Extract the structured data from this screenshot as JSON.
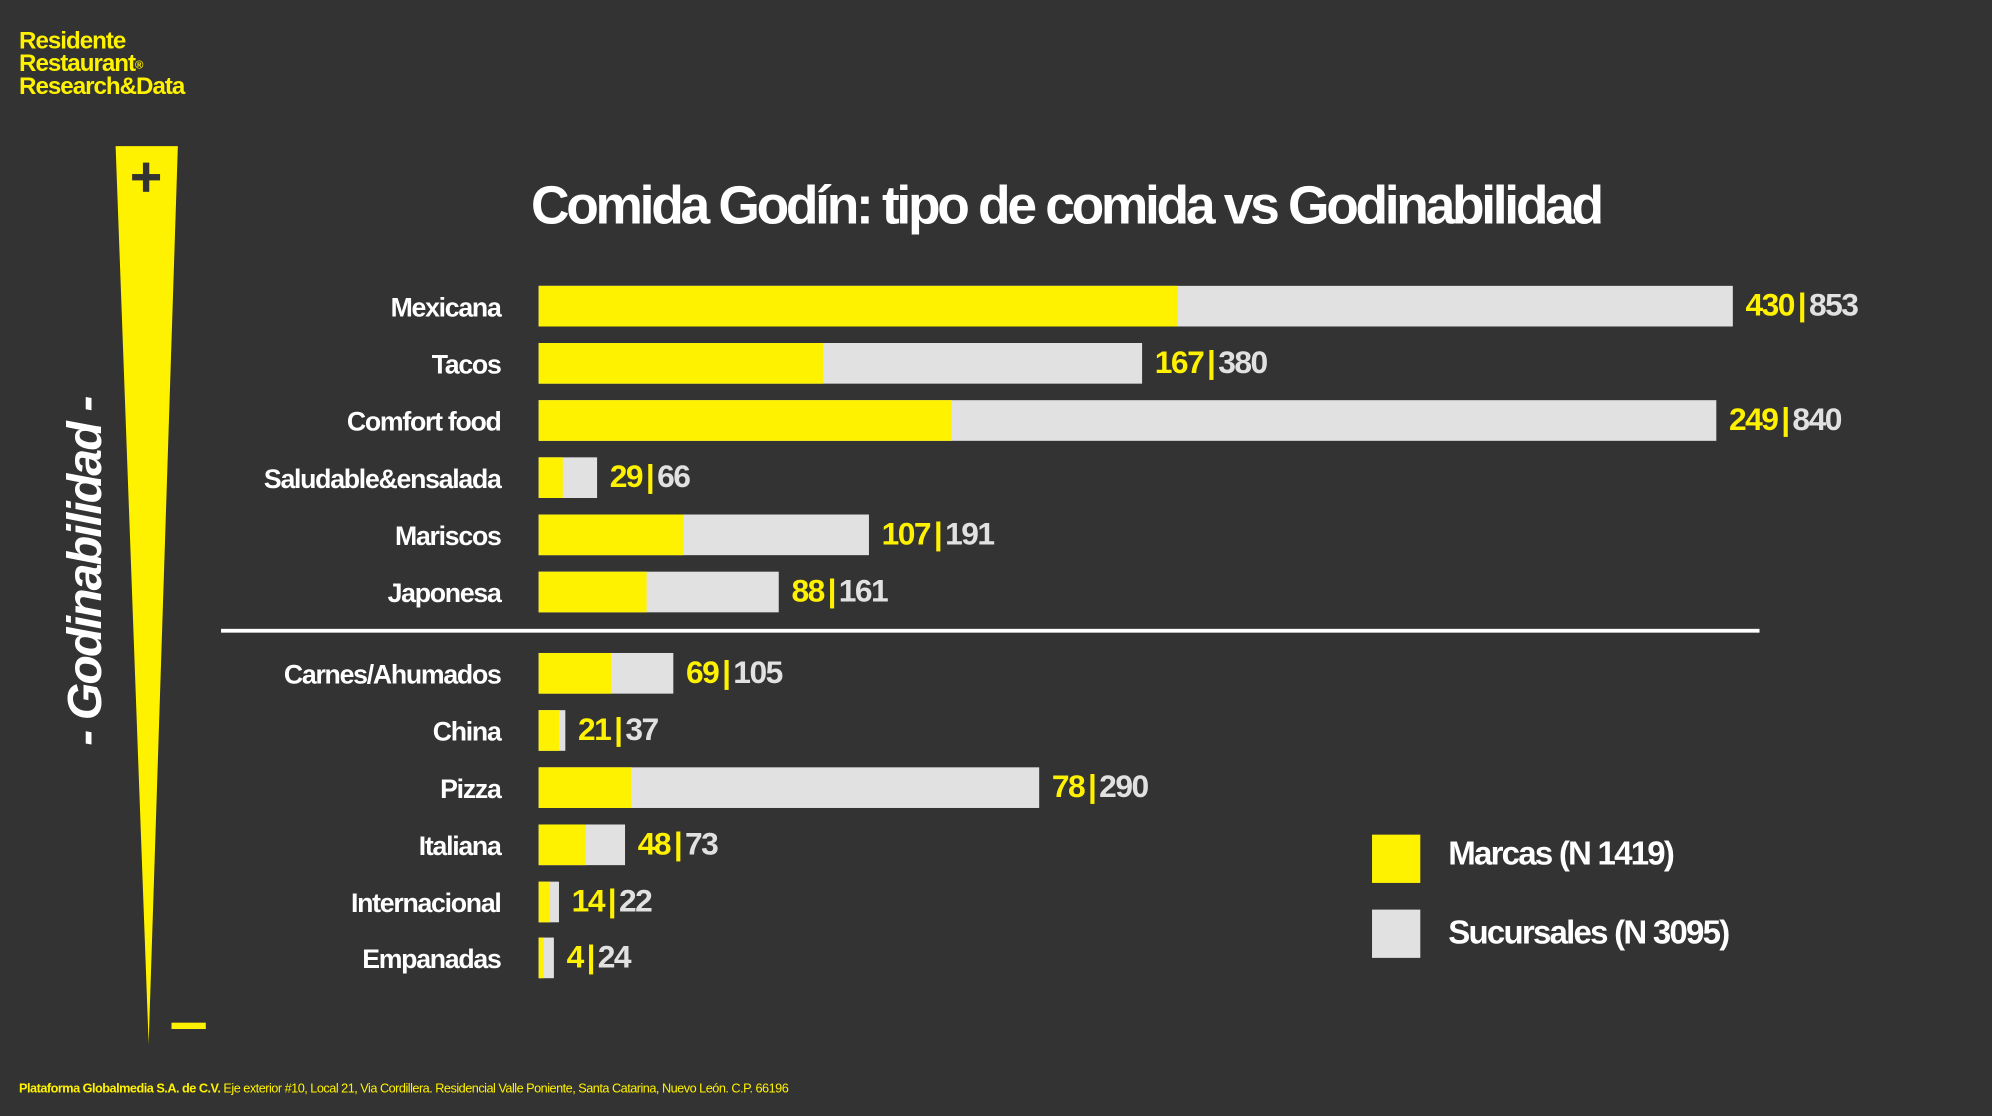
{
  "logo": {
    "line1": "Residente",
    "line2": "Restaurant",
    "mark": "®",
    "line3": "Research&Data"
  },
  "footer": {
    "company": "Plataforma Globalmedia S.A. de C.V.",
    "address": "Eje exterior #10, Local 21, Via Cordillera. Residencial Valle Poniente, Santa Catarina, Nuevo León. C.P. 66196"
  },
  "colors": {
    "background": "#333333",
    "marcas": "#FFF200",
    "sucursales": "#E1E1E1"
  },
  "axis": {
    "label": "- Godinabilidad -",
    "plus": "+",
    "minus": "-"
  },
  "chart_data": {
    "type": "bar",
    "orientation": "horizontal",
    "title": "Comida Godín: tipo de comida vs Godinabilidad",
    "categories": [
      "Mexicana",
      "Tacos",
      "Comfort food",
      "Saludable&ensalada",
      "Mariscos",
      "Japonesa",
      "Carnes/Ahumados",
      "China",
      "Pizza",
      "Italiana",
      "Internacional",
      "Empanadas"
    ],
    "series": [
      {
        "name": "Marcas (N 1419)",
        "values": [
          430,
          167,
          249,
          29,
          107,
          88,
          69,
          21,
          78,
          48,
          14,
          4
        ]
      },
      {
        "name": "Sucursales (N 3095)",
        "values": [
          853,
          380,
          840,
          66,
          191,
          161,
          105,
          37,
          290,
          73,
          22,
          24
        ]
      }
    ],
    "separator": "|",
    "divider_after": "Japonesa",
    "legend": "bottom-right"
  }
}
